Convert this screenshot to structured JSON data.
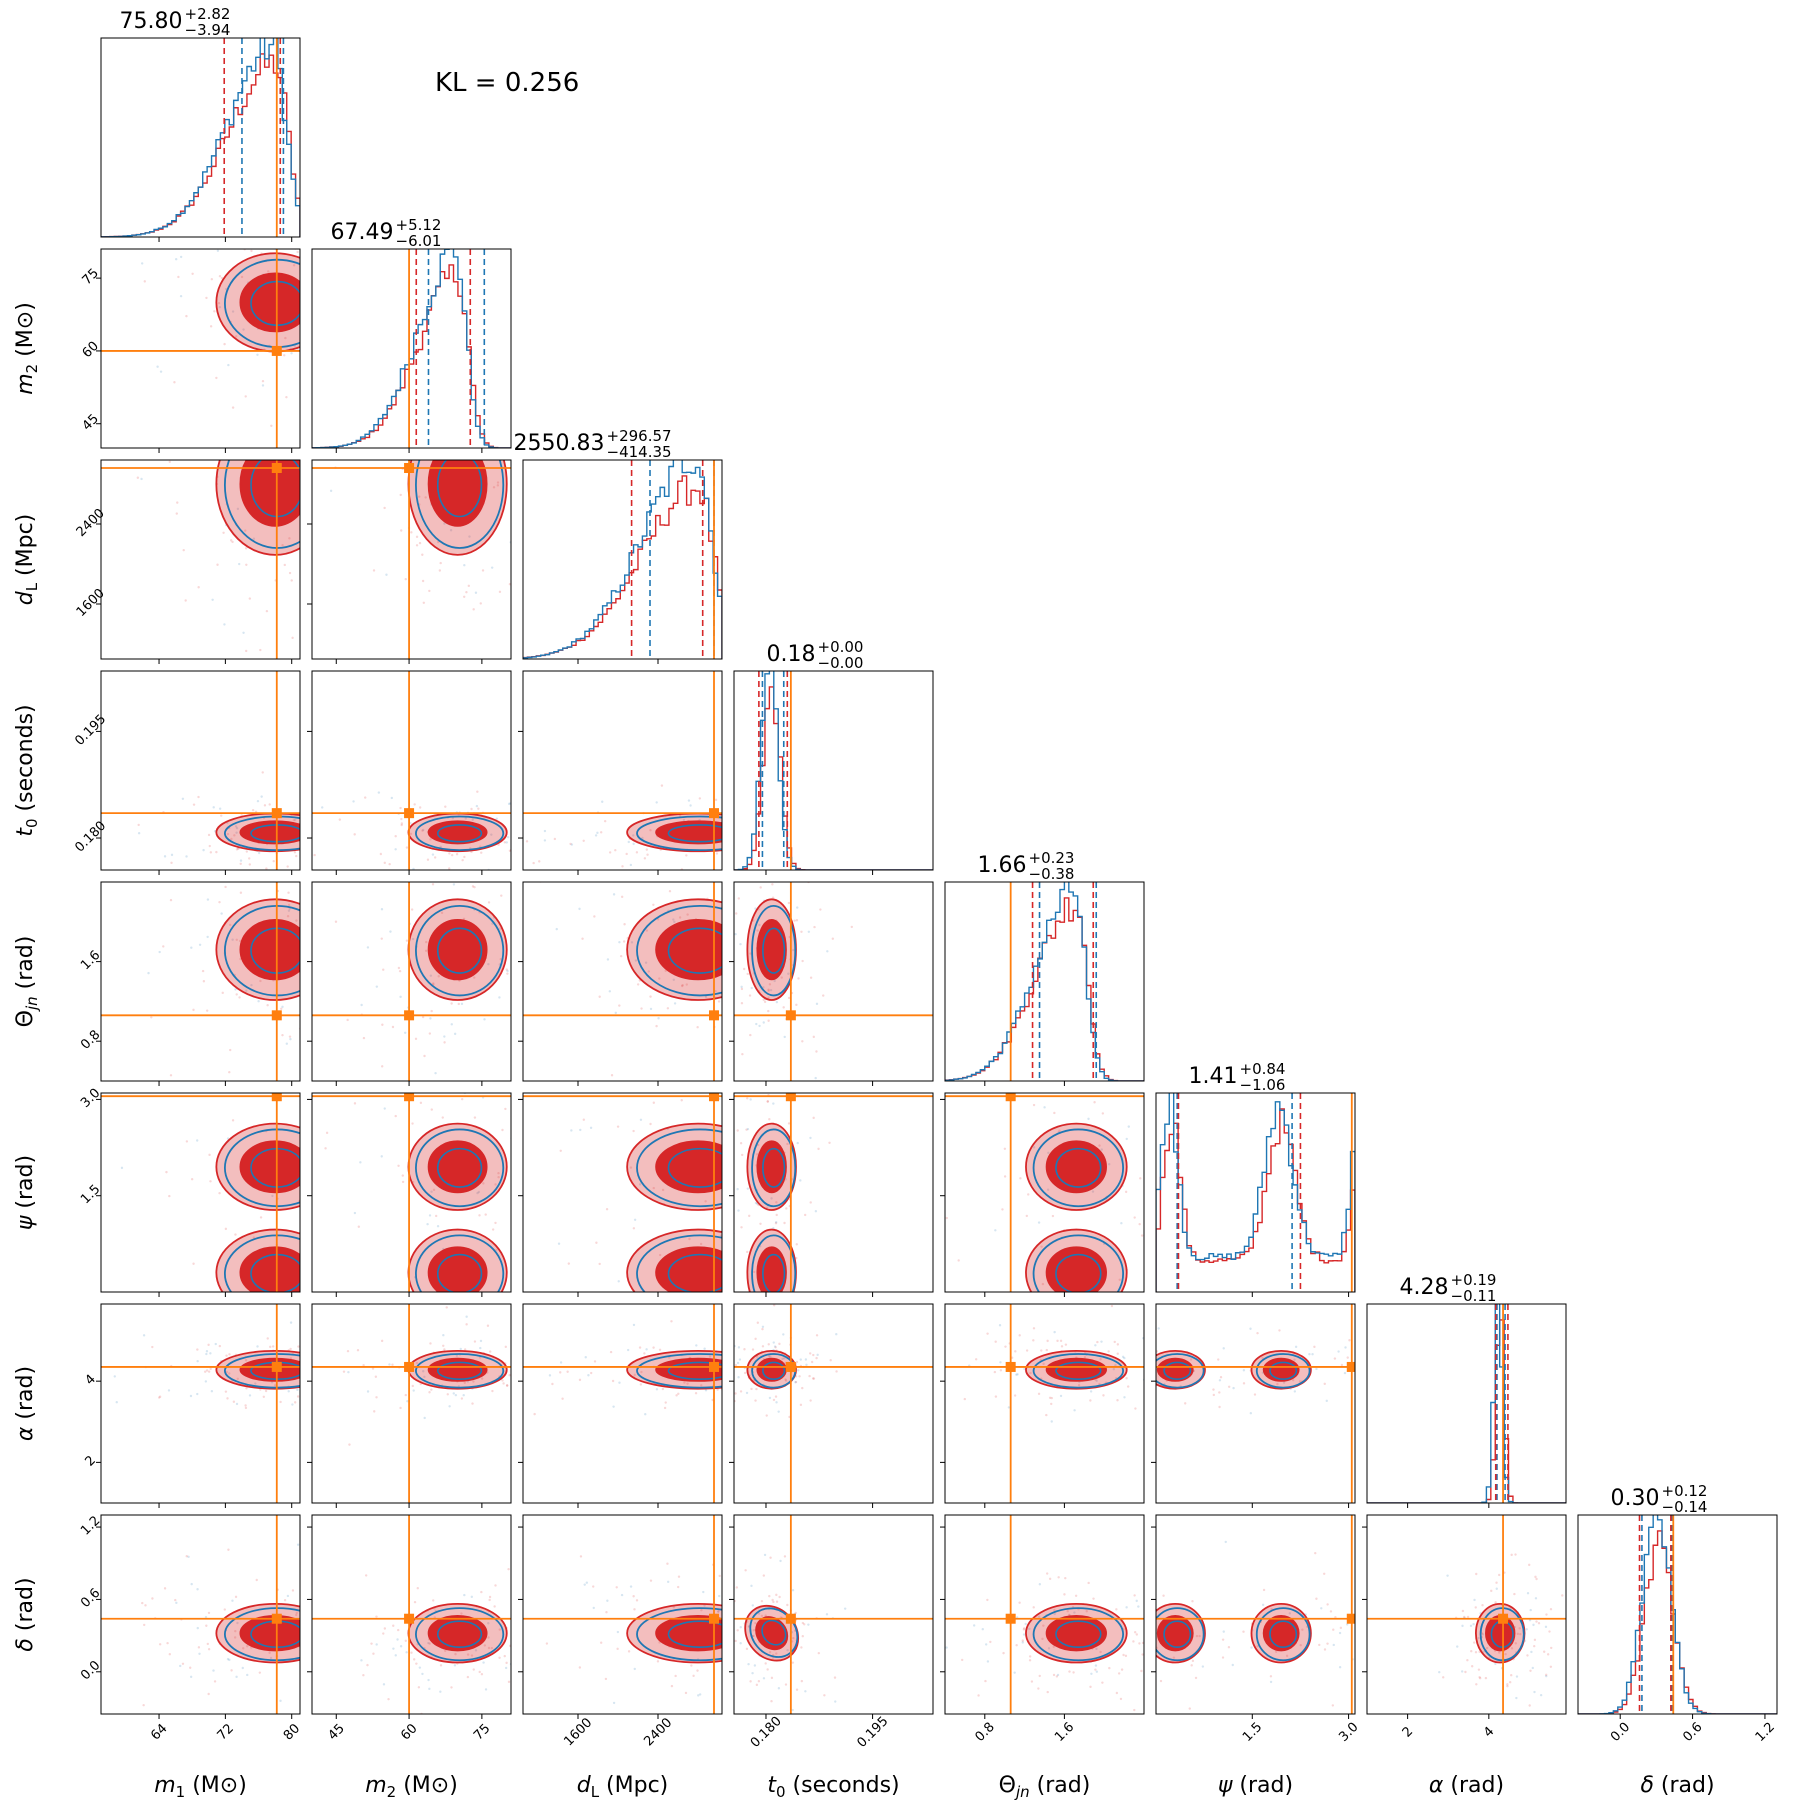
{
  "chart_data": {
    "type": "corner",
    "annotation": "KL = 0.256",
    "parameters": [
      {
        "key": "m1",
        "label": "m₁ (M⊙)",
        "range": [
          57,
          81
        ],
        "ticks": [
          64,
          72,
          80
        ],
        "tick_labels": [
          "64",
          "72",
          "80"
        ],
        "truth": 78.2,
        "median": 75.8,
        "plus": "+2.82",
        "minus": "−3.94",
        "title_main": "75.80",
        "q_red": [
          71.86,
          78.62
        ],
        "q_blue": [
          74.0,
          79.0
        ],
        "mode": 78.0,
        "spread": 3.5,
        "shape": "left-skew"
      },
      {
        "key": "m2",
        "label": "m₂ (M⊙)",
        "range": [
          40,
          81
        ],
        "ticks": [
          45,
          60,
          75
        ],
        "tick_labels": [
          "45",
          "60",
          "75"
        ],
        "truth": 60.0,
        "median": 67.49,
        "plus": "+5.12",
        "minus": "−6.01",
        "title_main": "67.49",
        "q_red": [
          61.48,
          72.61
        ],
        "q_blue": [
          64.0,
          75.5
        ],
        "mode": 70.0,
        "spread": 5.0,
        "shape": "left-skew"
      },
      {
        "key": "dL",
        "label": "d_L (Mpc)",
        "range": [
          1050,
          3040
        ],
        "ticks": [
          1600,
          2400
        ],
        "tick_labels": [
          "1600",
          "2400"
        ],
        "truth": 2960,
        "median": 2550.83,
        "plus": "+296.57",
        "minus": "−414.35",
        "title_main": "2550.83",
        "q_red": [
          2136,
          2847
        ],
        "q_blue": [
          2320,
          2960
        ],
        "mode": 2800,
        "spread": 350,
        "shape": "left-skew"
      },
      {
        "key": "t0",
        "label": "t₀ (seconds)",
        "range": [
          0.1755,
          0.2035
        ],
        "ticks": [
          0.18,
          0.195
        ],
        "tick_labels": [
          "0.180",
          "0.195"
        ],
        "truth": 0.1835,
        "median": 0.18,
        "plus": "+0.00",
        "minus": "−0.00",
        "title_main": "0.18",
        "q_red": [
          0.179,
          0.183
        ],
        "q_blue": [
          0.1795,
          0.1825
        ],
        "mode": 0.1808,
        "spread": 0.0012,
        "shape": "normal"
      },
      {
        "key": "theta",
        "label": "Θ_jn (rad)",
        "range": [
          0.4,
          2.4
        ],
        "ticks": [
          0.8,
          1.6
        ],
        "tick_labels": [
          "0.8",
          "1.6"
        ],
        "truth": 1.06,
        "median": 1.66,
        "plus": "+0.23",
        "minus": "−0.38",
        "title_main": "1.66",
        "q_red": [
          1.28,
          1.89
        ],
        "q_blue": [
          1.35,
          1.92
        ],
        "mode": 1.72,
        "spread": 0.25,
        "shape": "left-skew"
      },
      {
        "key": "psi",
        "label": "ψ (rad)",
        "range": [
          0.0,
          3.1
        ],
        "ticks": [
          1.5,
          3.0
        ],
        "tick_labels": [
          "1.5",
          "3.0"
        ],
        "truth": 3.05,
        "median": 1.41,
        "plus": "+0.84",
        "minus": "−1.06",
        "title_main": "1.41",
        "q_red": [
          0.35,
          2.25
        ],
        "q_blue": [
          0.33,
          2.12
        ],
        "mode": 1.9,
        "spread": 0.9,
        "shape": "bimodal"
      },
      {
        "key": "alpha",
        "label": "α (rad)",
        "range": [
          1.0,
          5.9
        ],
        "ticks": [
          2,
          4
        ],
        "tick_labels": [
          "2",
          "4"
        ],
        "truth": 4.35,
        "median": 4.28,
        "plus": "+0.19",
        "minus": "−0.11",
        "title_main": "4.28",
        "q_red": [
          4.17,
          4.47
        ],
        "q_blue": [
          4.2,
          4.4
        ],
        "mode": 4.28,
        "spread": 0.1,
        "shape": "normal"
      },
      {
        "key": "delta",
        "label": "δ (rad)",
        "range": [
          -0.35,
          1.3
        ],
        "ticks": [
          0.0,
          0.6,
          1.2
        ],
        "tick_labels": [
          "0.0",
          "0.6",
          "1.2"
        ],
        "truth": 0.44,
        "median": 0.3,
        "plus": "+0.12",
        "minus": "−0.14",
        "title_main": "0.30",
        "q_red": [
          0.16,
          0.42
        ],
        "q_blue": [
          0.18,
          0.43
        ],
        "mode": 0.32,
        "spread": 0.12,
        "shape": "normal"
      }
    ],
    "series": [
      {
        "name": "",
        "color": "#d62728"
      },
      {
        "name": "",
        "color": "#1f77b4"
      }
    ],
    "truth_color": "#ff7f0e"
  }
}
